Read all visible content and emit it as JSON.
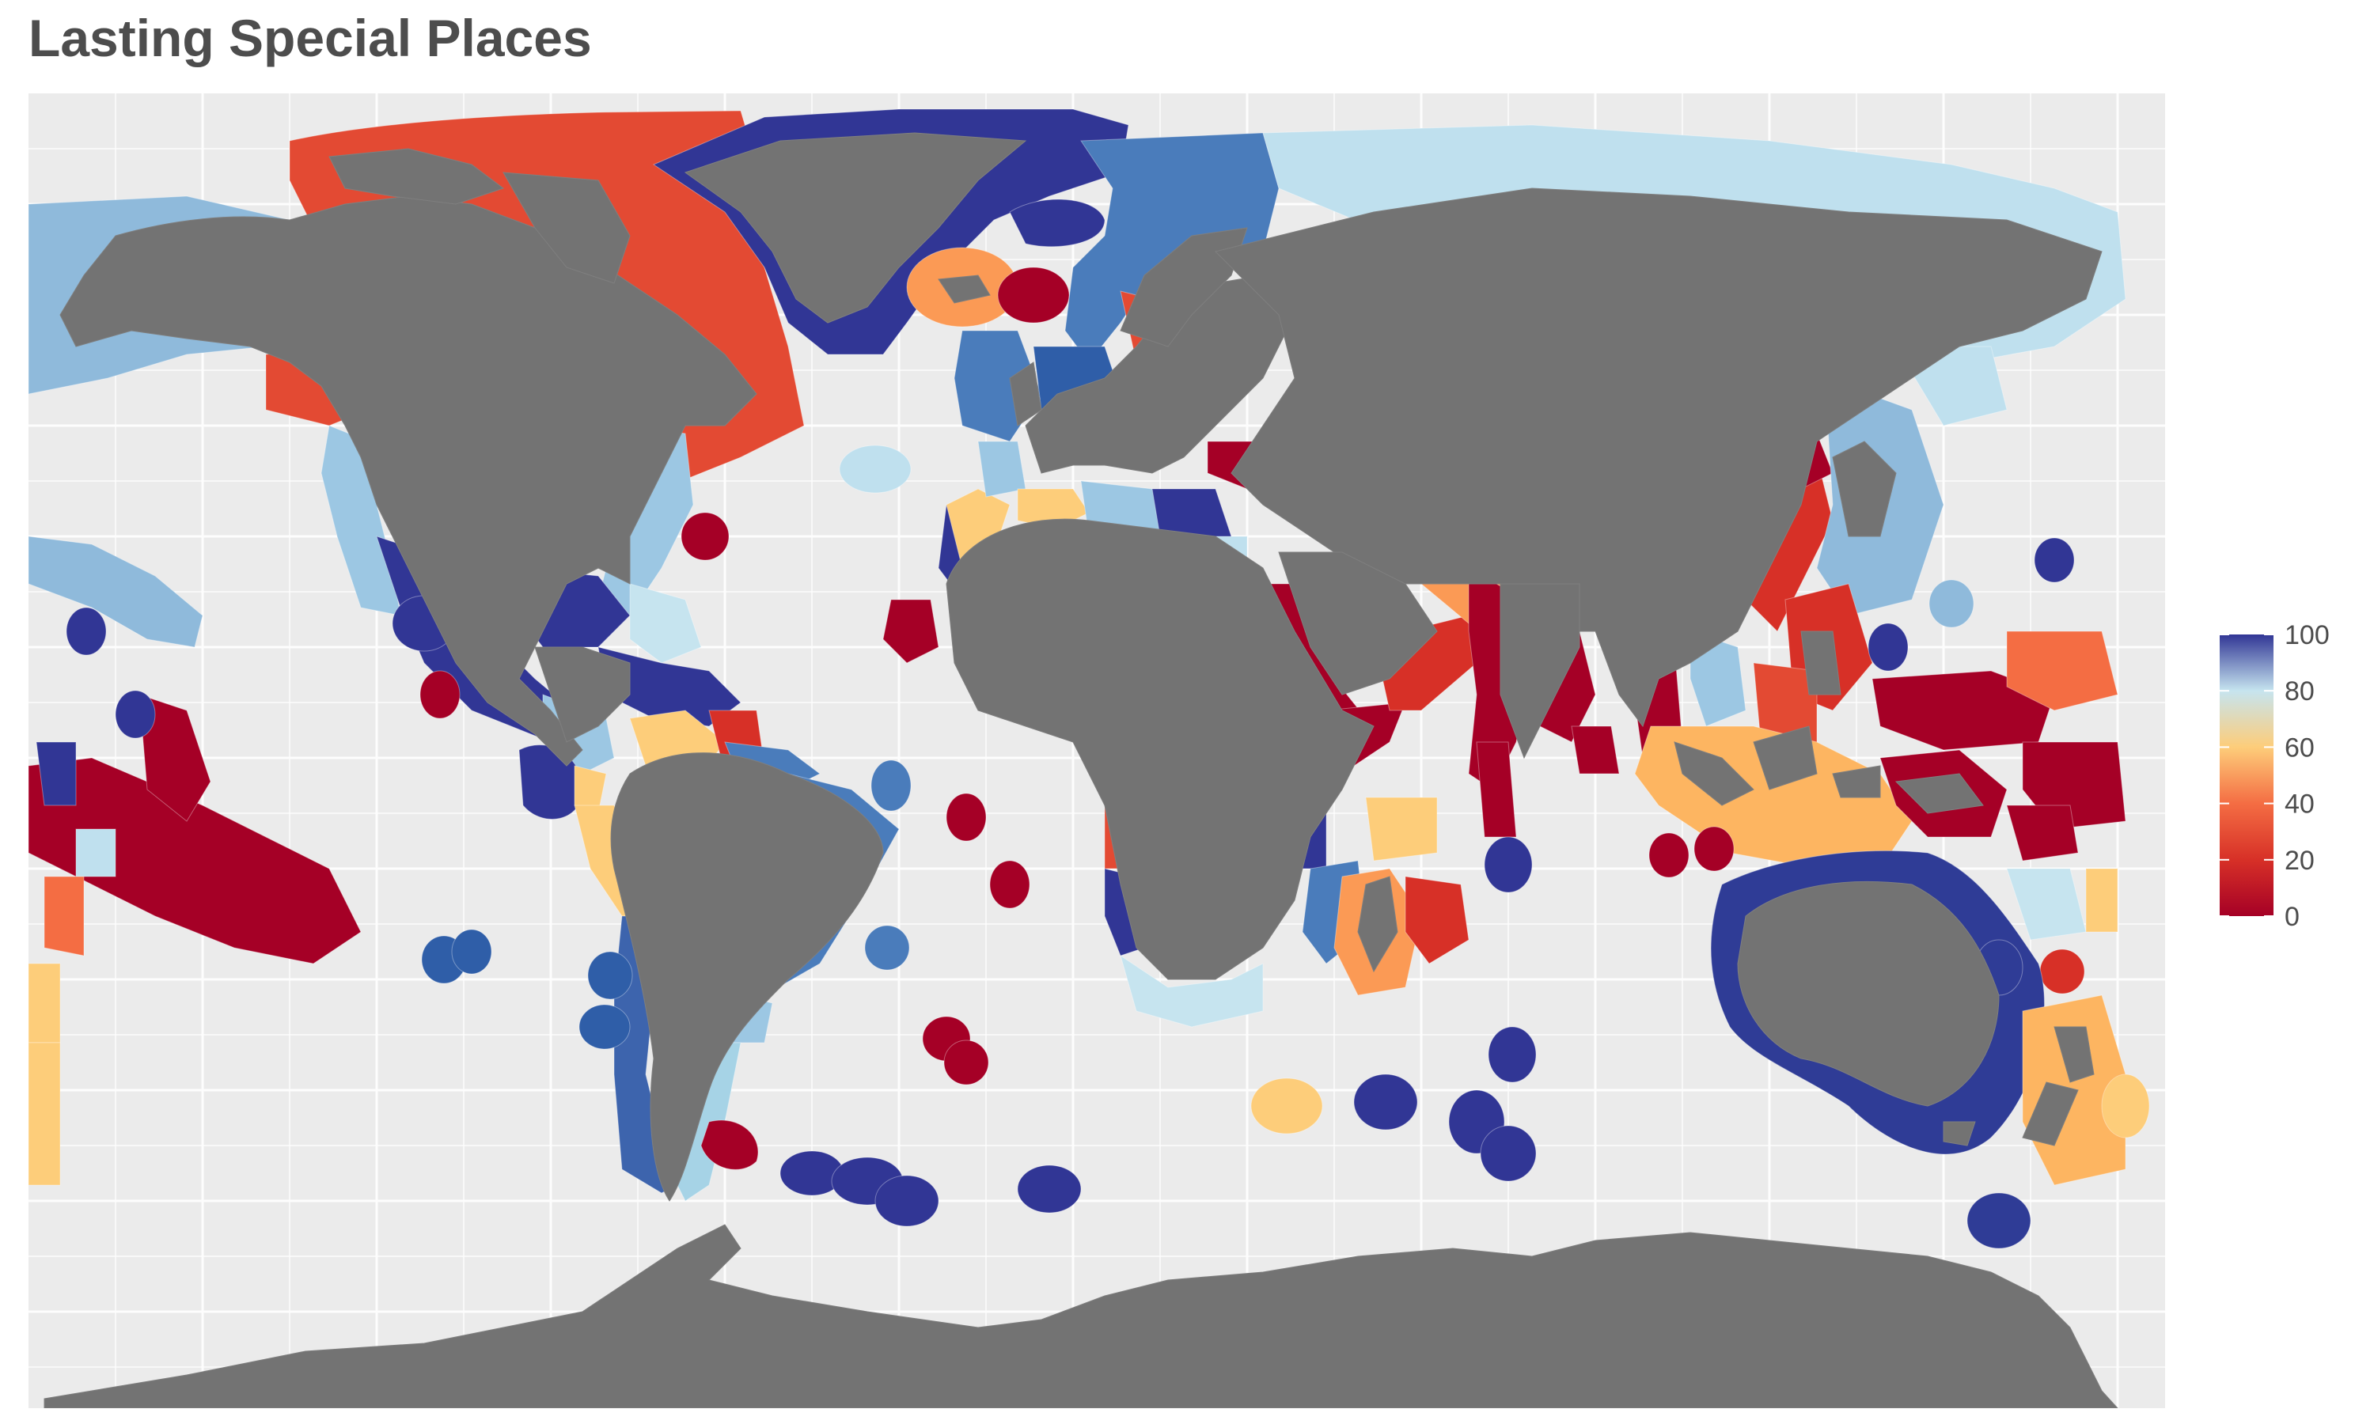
{
  "title": "Lasting Special Places",
  "legend": {
    "ticks": [
      {
        "value": 100,
        "label": "100"
      },
      {
        "value": 80,
        "label": "80"
      },
      {
        "value": 60,
        "label": "60"
      },
      {
        "value": 40,
        "label": "40"
      },
      {
        "value": 20,
        "label": "20"
      },
      {
        "value": 0,
        "label": "0"
      }
    ],
    "min": 0,
    "max": 100
  },
  "colors": {
    "panel": "#ebebeb",
    "grid": "#ffffff",
    "land": "#737373",
    "scale_0": "#a50026",
    "scale_20": "#d73027",
    "scale_40": "#f46d43",
    "scale_60": "#fdcd7a",
    "scale_80": "#c6e4ef",
    "scale_100": "#313695"
  }
}
